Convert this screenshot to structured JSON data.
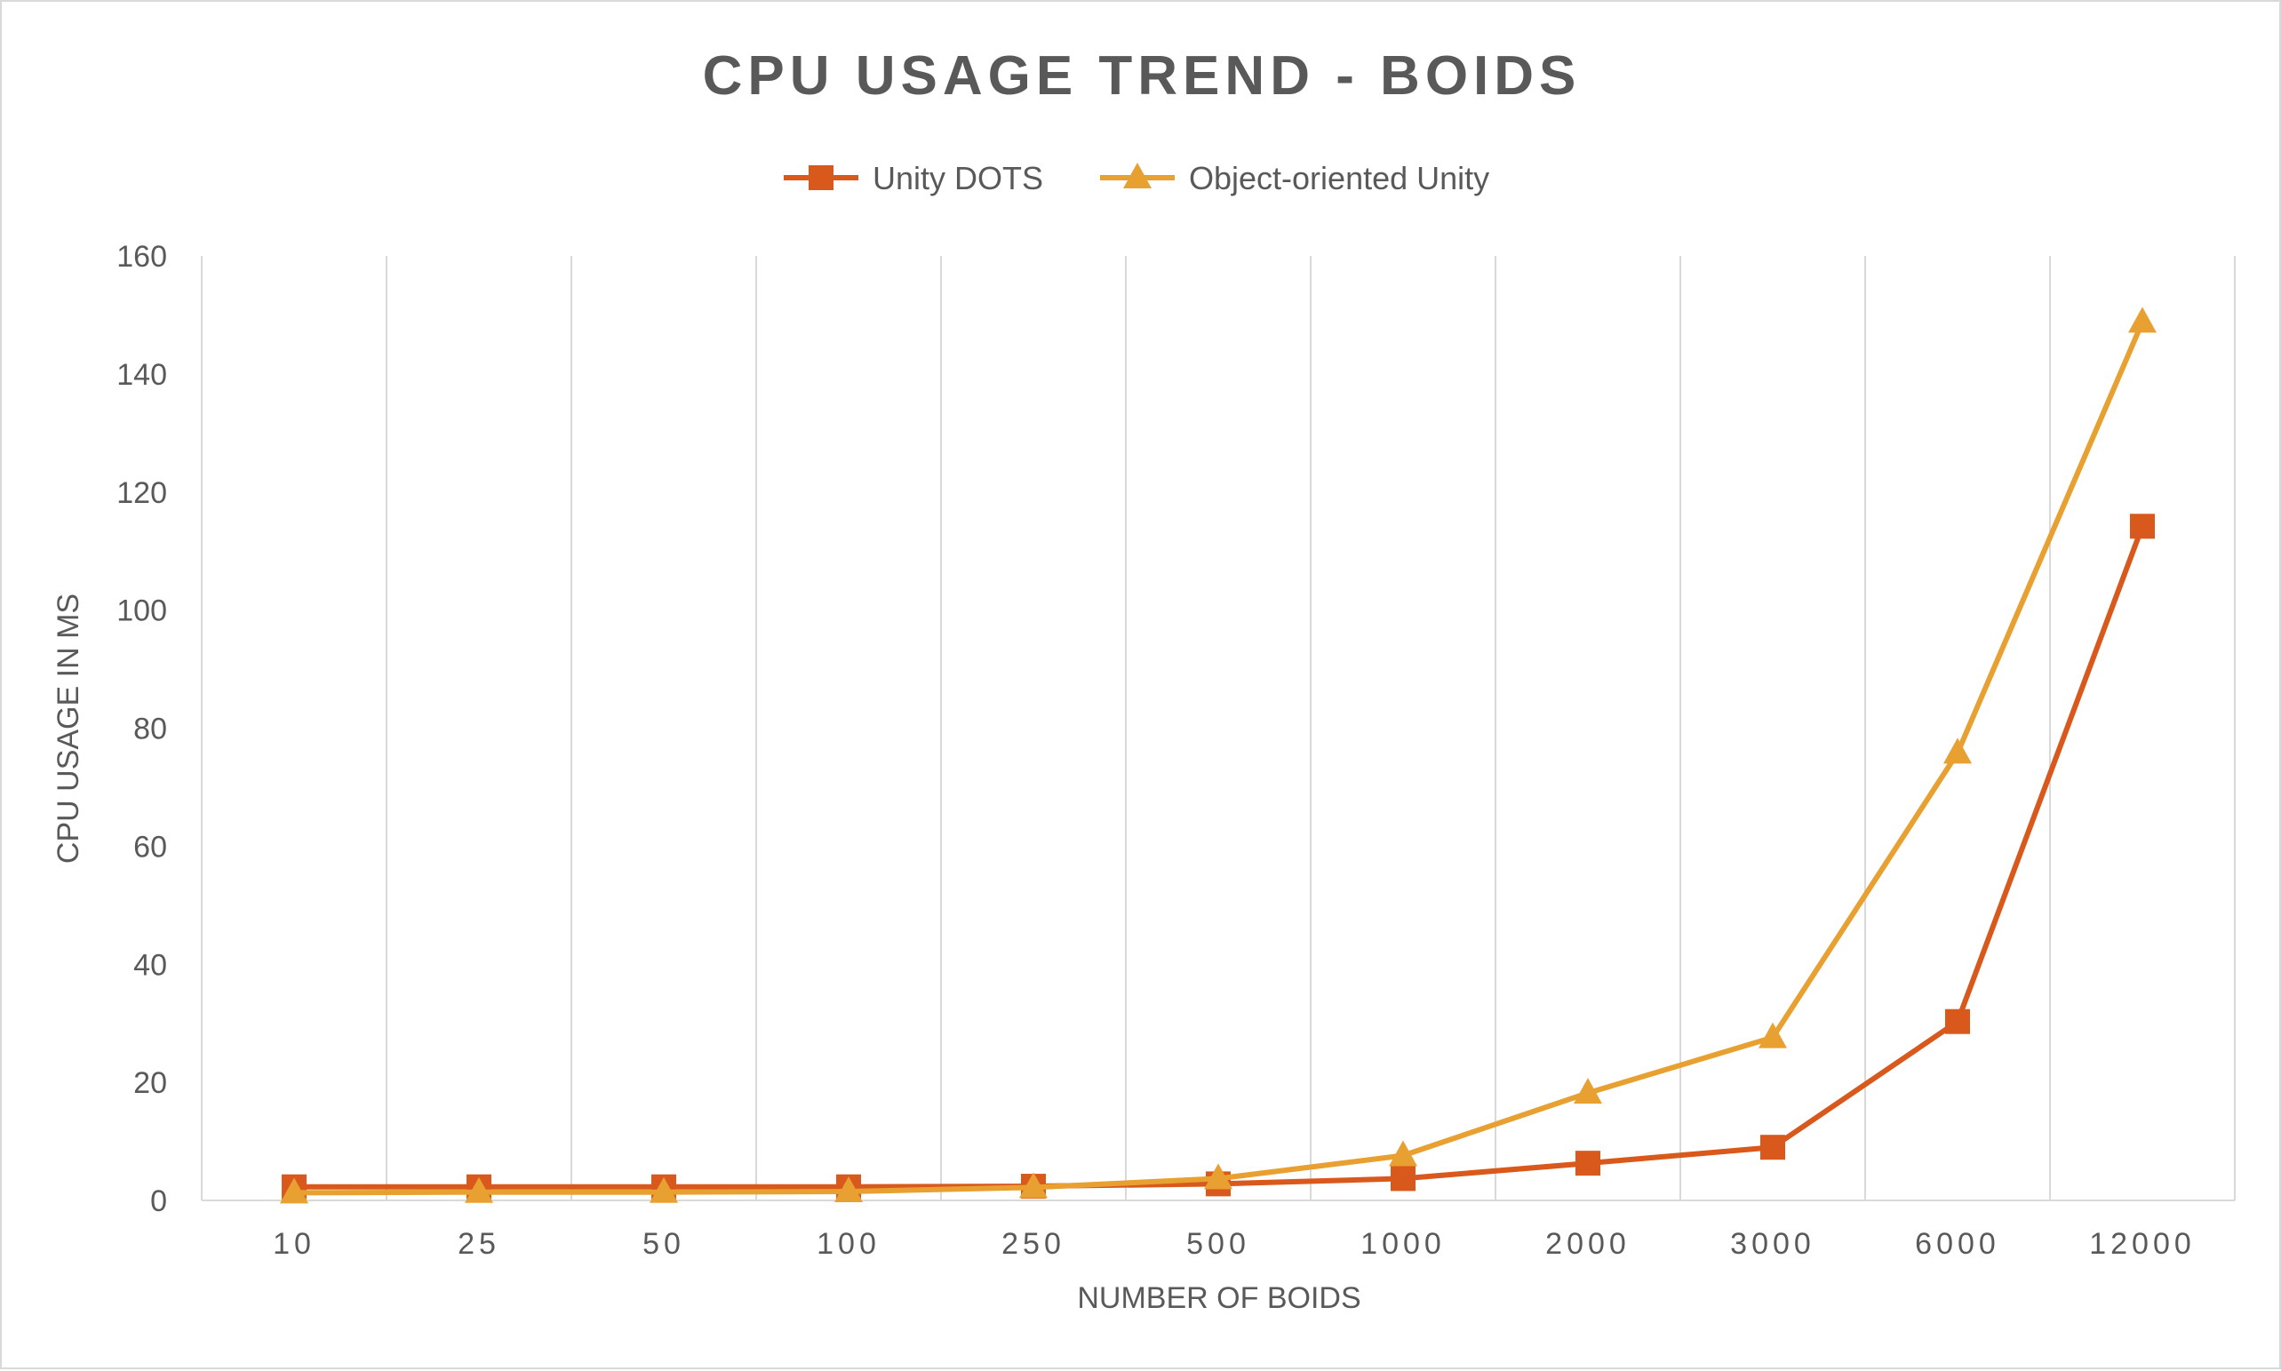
{
  "chart_data": {
    "type": "line",
    "title": "CPU USAGE TREND - BOIDS",
    "xlabel": "NUMBER OF BOIDS",
    "ylabel": "CPU USAGE IN MS",
    "categories": [
      "10",
      "25",
      "50",
      "100",
      "250",
      "500",
      "1000",
      "2000",
      "3000",
      "6000",
      "12000"
    ],
    "ylim": [
      0,
      160
    ],
    "yticks": [
      "0",
      "20",
      "40",
      "60",
      "80",
      "100",
      "120",
      "140",
      "160"
    ],
    "grid": "vertical",
    "legend_position": "top-center",
    "series": [
      {
        "name": "Unity DOTS",
        "color": "#d9581c",
        "marker": "square",
        "values": [
          2.3,
          2.3,
          2.3,
          2.3,
          2.4,
          2.8,
          3.7,
          6.3,
          9.0,
          30.3,
          114.2
        ]
      },
      {
        "name": "Object-oriented Unity",
        "color": "#e8a030",
        "marker": "triangle",
        "values": [
          1.3,
          1.4,
          1.4,
          1.5,
          2.2,
          3.7,
          7.6,
          18.2,
          27.6,
          75.8,
          148.8
        ]
      }
    ]
  }
}
